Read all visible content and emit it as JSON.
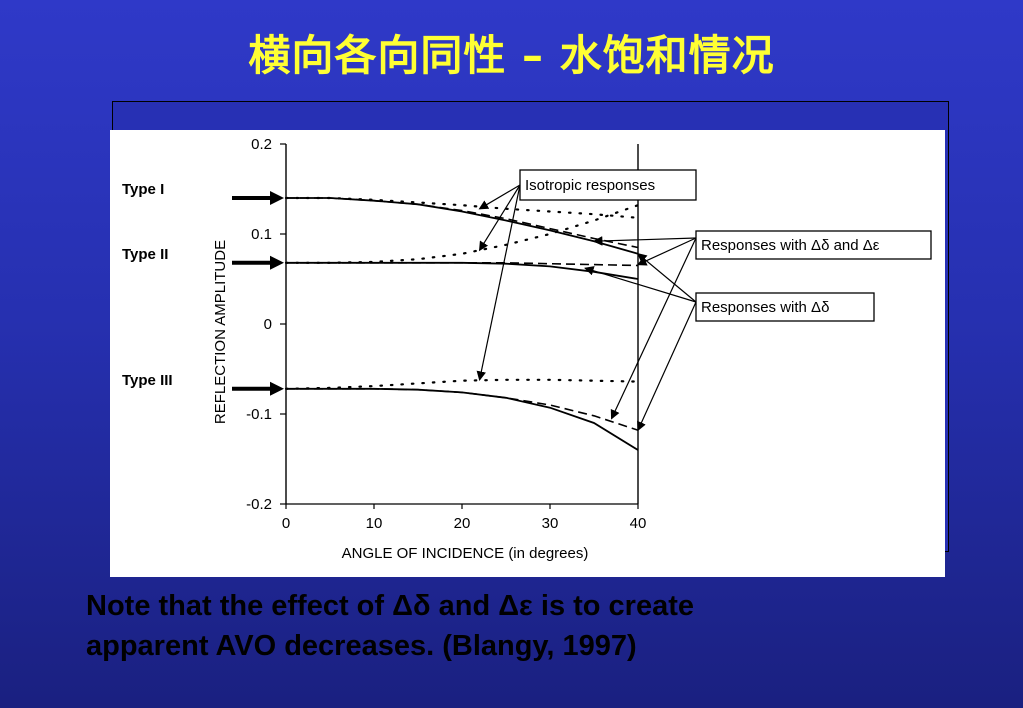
{
  "slide": {
    "title": "横向各向同性 – 水饱和情况",
    "caption_line1": "Note that the effect of Δδ and Δε is to create",
    "caption_line2": "apparent AVO decreases. (Blangy, 1997)"
  },
  "chart_data": {
    "type": "line",
    "xlabel": "ANGLE OF INCIDENCE (in degrees)",
    "ylabel": "REFLECTION AMPLITUDE",
    "xlim": [
      0,
      40
    ],
    "ylim": [
      -0.2,
      0.2
    ],
    "x_ticks": [
      0,
      10,
      20,
      30,
      40
    ],
    "y_ticks": [
      0.2,
      0.1,
      0,
      -0.1,
      -0.2
    ],
    "y_tick_labels": [
      "0.2",
      "0.1",
      "0",
      "-0.1",
      "-0.2"
    ],
    "type_labels": [
      {
        "text": "Type I",
        "y": 0.14
      },
      {
        "text": "Type II",
        "y": 0.068
      },
      {
        "text": "Type III",
        "y": -0.072
      }
    ],
    "series": [
      {
        "style": "solid",
        "group": "Type I",
        "x": [
          0,
          5,
          10,
          15,
          20,
          25,
          30,
          35,
          40
        ],
        "y": [
          0.14,
          0.14,
          0.137,
          0.133,
          0.125,
          0.115,
          0.104,
          0.092,
          0.078
        ]
      },
      {
        "style": "dotted",
        "group": "Type I",
        "x": [
          0,
          5,
          10,
          15,
          20,
          25,
          30,
          35,
          40
        ],
        "y": [
          0.14,
          0.14,
          0.138,
          0.135,
          0.132,
          0.128,
          0.125,
          0.122,
          0.118
        ]
      },
      {
        "style": "dashed",
        "group": "Type I",
        "x": [
          0,
          5,
          10,
          15,
          20,
          25,
          30,
          35,
          40
        ],
        "y": [
          0.14,
          0.14,
          0.137,
          0.133,
          0.126,
          0.117,
          0.106,
          0.095,
          0.085
        ]
      },
      {
        "style": "solid",
        "group": "Type II",
        "x": [
          0,
          5,
          10,
          15,
          20,
          25,
          30,
          35,
          40
        ],
        "y": [
          0.068,
          0.068,
          0.068,
          0.068,
          0.068,
          0.067,
          0.064,
          0.058,
          0.05
        ]
      },
      {
        "style": "dotted",
        "group": "Type II",
        "x": [
          0,
          5,
          10,
          15,
          20,
          25,
          30,
          35,
          40
        ],
        "y": [
          0.068,
          0.068,
          0.069,
          0.072,
          0.078,
          0.088,
          0.1,
          0.115,
          0.132
        ]
      },
      {
        "style": "dashed",
        "group": "Type II",
        "x": [
          0,
          5,
          10,
          15,
          20,
          25,
          30,
          35,
          40
        ],
        "y": [
          0.068,
          0.068,
          0.068,
          0.068,
          0.068,
          0.068,
          0.067,
          0.066,
          0.065
        ]
      },
      {
        "style": "solid",
        "group": "Type III",
        "x": [
          0,
          5,
          10,
          15,
          20,
          25,
          30,
          35,
          40
        ],
        "y": [
          -0.072,
          -0.072,
          -0.072,
          -0.073,
          -0.076,
          -0.082,
          -0.093,
          -0.11,
          -0.14
        ]
      },
      {
        "style": "dotted",
        "group": "Type III",
        "x": [
          0,
          5,
          10,
          15,
          20,
          25,
          30,
          35,
          40
        ],
        "y": [
          -0.072,
          -0.071,
          -0.069,
          -0.066,
          -0.063,
          -0.062,
          -0.062,
          -0.063,
          -0.064
        ]
      },
      {
        "style": "dashed",
        "group": "Type III",
        "x": [
          0,
          5,
          10,
          15,
          20,
          25,
          30,
          35,
          40
        ],
        "y": [
          -0.072,
          -0.072,
          -0.072,
          -0.073,
          -0.076,
          -0.082,
          -0.09,
          -0.102,
          -0.118
        ]
      }
    ],
    "annotations": [
      {
        "text": "Isotropic responses",
        "targets": [
          [
            22,
            0.128
          ],
          [
            22,
            0.082
          ],
          [
            22,
            -0.062
          ]
        ]
      },
      {
        "text": "Responses with Δδ and Δε",
        "targets": [
          [
            35,
            0.092
          ],
          [
            40,
            0.066
          ],
          [
            37,
            -0.105
          ]
        ]
      },
      {
        "text": "Responses with Δδ",
        "targets": [
          [
            34,
            0.062
          ],
          [
            40,
            0.078
          ],
          [
            40,
            -0.118
          ]
        ]
      }
    ]
  }
}
